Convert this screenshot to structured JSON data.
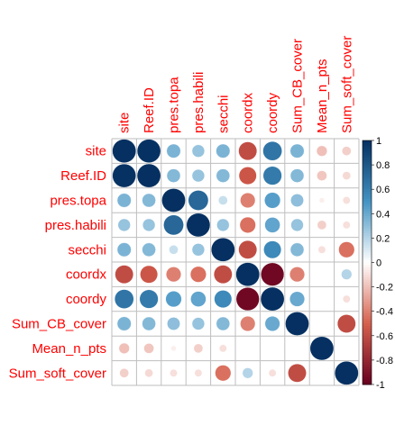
{
  "chart_data": {
    "type": "heatmap",
    "variables": [
      "site",
      "Reef.ID",
      "pres.topa",
      "pres.habili",
      "secchi",
      "coordx",
      "coordy",
      "Sum_CB_cover",
      "Mean_n_pts",
      "Sum_soft_cover"
    ],
    "matrix": [
      [
        1.0,
        0.99,
        0.35,
        0.28,
        0.35,
        -0.6,
        0.65,
        0.35,
        -0.2,
        -0.15
      ],
      [
        0.99,
        1.0,
        0.33,
        0.28,
        0.33,
        -0.55,
        0.62,
        0.33,
        -0.18,
        -0.12
      ],
      [
        0.35,
        0.33,
        1.0,
        0.72,
        0.15,
        -0.4,
        0.45,
        0.3,
        -0.05,
        -0.1
      ],
      [
        0.28,
        0.28,
        0.72,
        1.0,
        0.28,
        -0.45,
        0.42,
        0.28,
        -0.15,
        -0.1
      ],
      [
        0.35,
        0.33,
        0.15,
        0.28,
        1.0,
        -0.6,
        0.55,
        0.33,
        -0.1,
        -0.45
      ],
      [
        -0.6,
        -0.55,
        -0.4,
        -0.45,
        -0.6,
        1.0,
        -0.96,
        -0.4,
        0.0,
        0.2
      ],
      [
        0.65,
        0.62,
        0.45,
        0.42,
        0.55,
        -0.96,
        1.0,
        0.4,
        0.0,
        -0.1
      ],
      [
        0.35,
        0.33,
        0.3,
        0.28,
        0.33,
        -0.4,
        0.4,
        1.0,
        0.0,
        -0.6
      ],
      [
        -0.2,
        -0.18,
        -0.05,
        -0.15,
        -0.1,
        0.0,
        0.0,
        0.0,
        1.0,
        0.0
      ],
      [
        -0.15,
        -0.12,
        -0.1,
        -0.1,
        -0.45,
        0.2,
        -0.1,
        -0.6,
        0.0,
        1.0
      ]
    ],
    "colorbar_ticks": [
      "1",
      "0.8",
      "0.6",
      "0.4",
      "0.2",
      "0",
      "-0.2",
      "-0.4",
      "-0.6",
      "-0.8",
      "-1"
    ],
    "range": [
      -1,
      1
    ],
    "colors": {
      "negative_end": "#67001f",
      "negative_mid": "#d6604d",
      "neutral": "#ffffff",
      "positive_mid": "#4393c3",
      "positive_end": "#053061",
      "label": "#ff0000",
      "grid": "#bebebe"
    }
  }
}
